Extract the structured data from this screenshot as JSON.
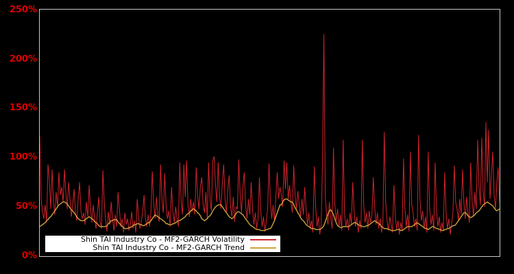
{
  "figure": {
    "background": "#000000",
    "plot_border_color": "#c8c8c8",
    "tick_label_color": "#dd0000"
  },
  "legend": {
    "background": "#ffffff",
    "border_color": "#000000",
    "entries": [
      {
        "label": "Shin TAI Industry Co - MF2-GARCH Volatility",
        "color": "#d0242b"
      },
      {
        "label": "Shin TAI Industry Co - MF2-GARCH Trend",
        "color": "#cda43c"
      }
    ]
  },
  "chart_data": {
    "type": "line",
    "title": "",
    "xlabel": "",
    "ylabel": "",
    "ylim": [
      0,
      250
    ],
    "ytick_labels": [
      "0%",
      "50%",
      "100%",
      "150%",
      "200%",
      "250%"
    ],
    "xtick_labels": [],
    "grid": false,
    "legend_position": "lower-left",
    "series": [
      {
        "name": "Shin TAI Industry Co - MF2-GARCH Volatility",
        "color": "#d0242b",
        "stroke_width": 1.0,
        "values": [
          122,
          58,
          45,
          38,
          52,
          34,
          93,
          78,
          48,
          88,
          55,
          42,
          65,
          50,
          85,
          62,
          70,
          55,
          88,
          64,
          48,
          75,
          58,
          40,
          52,
          68,
          44,
          36,
          58,
          75,
          46,
          38,
          44,
          32,
          55,
          40,
          72,
          48,
          34,
          52,
          38,
          28,
          44,
          60,
          35,
          28,
          87,
          55,
          36,
          25,
          45,
          32,
          55,
          38,
          26,
          42,
          30,
          65,
          48,
          30,
          38,
          24,
          44,
          32,
          38,
          26,
          33,
          45,
          28,
          36,
          24,
          58,
          40,
          28,
          35,
          45,
          62,
          38,
          30,
          42,
          30,
          44,
          86,
          55,
          38,
          60,
          42,
          35,
          93,
          58,
          44,
          84,
          52,
          38,
          46,
          30,
          70,
          45,
          34,
          50,
          38,
          30,
          95,
          55,
          42,
          93,
          60,
          97,
          52,
          40,
          58,
          45,
          55,
          42,
          90,
          62,
          48,
          70,
          80,
          52,
          44,
          65,
          38,
          95,
          58,
          46,
          97,
          101,
          72,
          55,
          95,
          60,
          48,
          75,
          93,
          58,
          44,
          68,
          82,
          50,
          40,
          60,
          35,
          50,
          48,
          98,
          62,
          44,
          70,
          85,
          52,
          38,
          58,
          42,
          75,
          48,
          32,
          44,
          28,
          38,
          80,
          45,
          30,
          40,
          25,
          35,
          48,
          94,
          55,
          38,
          52,
          35,
          60,
          85,
          58,
          70,
          62,
          50,
          97,
          68,
          95,
          58,
          72,
          55,
          44,
          92,
          60,
          48,
          66,
          52,
          40,
          58,
          42,
          70,
          48,
          32,
          44,
          28,
          36,
          24,
          91,
          50,
          30,
          40,
          22,
          32,
          96,
          225,
          60,
          42,
          32,
          55,
          38,
          28,
          110,
          52,
          36,
          48,
          30,
          42,
          26,
          118,
          44,
          30,
          38,
          26,
          44,
          32,
          75,
          46,
          30,
          40,
          24,
          36,
          28,
          118,
          52,
          34,
          44,
          28,
          46,
          34,
          42,
          80,
          50,
          32,
          44,
          28,
          38,
          24,
          34,
          126,
          55,
          36,
          26,
          40,
          32,
          24,
          72,
          40,
          28,
          36,
          22,
          34,
          26,
          99,
          48,
          30,
          42,
          25,
          106,
          52,
          44,
          30,
          38,
          26,
          123,
          58,
          36,
          46,
          28,
          40,
          24,
          106,
          50,
          32,
          42,
          26,
          95,
          48,
          30,
          40,
          24,
          34,
          26,
          85,
          44,
          28,
          38,
          22,
          32,
          44,
          92,
          55,
          48,
          36,
          58,
          42,
          88,
          54,
          38,
          60,
          44,
          34,
          95,
          56,
          40,
          65,
          48,
          118,
          70,
          52,
          120,
          66,
          50,
          136,
          75,
          128,
          58,
          82,
          106,
          62,
          48,
          74,
          90,
          55
        ]
      },
      {
        "name": "Shin TAI Industry Co - MF2-GARCH Trend",
        "color": "#cda43c",
        "stroke_width": 1.4,
        "values": [
          30,
          31,
          32,
          33,
          34,
          36,
          37,
          39,
          40,
          42,
          44,
          46,
          48,
          50,
          52,
          53,
          54,
          55,
          55,
          54,
          53,
          51,
          49,
          47,
          46,
          44,
          42,
          40,
          38,
          37,
          36,
          36,
          36,
          37,
          38,
          39,
          40,
          39,
          38,
          37,
          35,
          34,
          33,
          31,
          30,
          30,
          30,
          30,
          30,
          31,
          33,
          34,
          36,
          36,
          37,
          37,
          37,
          35,
          33,
          32,
          30,
          29,
          28,
          28,
          28,
          29,
          29,
          30,
          31,
          32,
          32,
          33,
          33,
          32,
          32,
          31,
          31,
          32,
          33,
          34,
          34,
          36,
          38,
          40,
          42,
          41,
          40,
          39,
          38,
          37,
          36,
          35,
          33,
          33,
          32,
          32,
          32,
          33,
          33,
          34,
          35,
          36,
          36,
          37,
          38,
          39,
          40,
          42,
          43,
          44,
          46,
          47,
          48,
          47,
          46,
          44,
          43,
          41,
          38,
          37,
          36,
          37,
          38,
          40,
          41,
          43,
          46,
          48,
          50,
          51,
          52,
          52,
          52,
          50,
          48,
          46,
          44,
          42,
          40,
          39,
          38,
          39,
          41,
          43,
          45,
          45,
          44,
          43,
          42,
          40,
          38,
          36,
          34,
          32,
          31,
          30,
          29,
          28,
          27,
          27,
          27,
          26,
          26,
          26,
          26,
          27,
          27,
          28,
          28,
          30,
          33,
          36,
          40,
          44,
          48,
          52,
          52,
          55,
          57,
          58,
          58,
          57,
          56,
          55,
          55,
          52,
          49,
          47,
          44,
          42,
          39,
          37,
          36,
          34,
          32,
          31,
          30,
          29,
          28,
          28,
          28,
          27,
          27,
          27,
          27,
          28,
          29,
          31,
          35,
          39,
          43,
          46,
          47,
          45,
          42,
          38,
          34,
          31,
          30,
          29,
          29,
          30,
          30,
          30,
          30,
          30,
          31,
          32,
          33,
          34,
          34,
          33,
          32,
          31,
          31,
          30,
          30,
          30,
          31,
          31,
          32,
          33,
          34,
          35,
          36,
          35,
          34,
          33,
          32,
          30,
          29,
          28,
          28,
          28,
          27,
          27,
          26,
          26,
          26,
          26,
          27,
          27,
          27,
          26,
          26,
          27,
          28,
          29,
          30,
          30,
          30,
          30,
          31,
          32,
          33,
          34,
          33,
          32,
          31,
          30,
          29,
          28,
          28,
          27,
          28,
          29,
          30,
          30,
          29,
          28,
          28,
          27,
          27,
          26,
          26,
          27,
          27,
          28,
          28,
          29,
          30,
          31,
          31,
          32,
          34,
          36,
          38,
          40,
          42,
          44,
          44,
          43,
          41,
          40,
          39,
          40,
          41,
          42,
          44,
          45,
          46,
          48,
          50,
          52,
          53,
          54,
          55,
          54,
          53,
          52,
          51,
          49,
          47,
          46,
          47,
          48
        ]
      }
    ]
  }
}
